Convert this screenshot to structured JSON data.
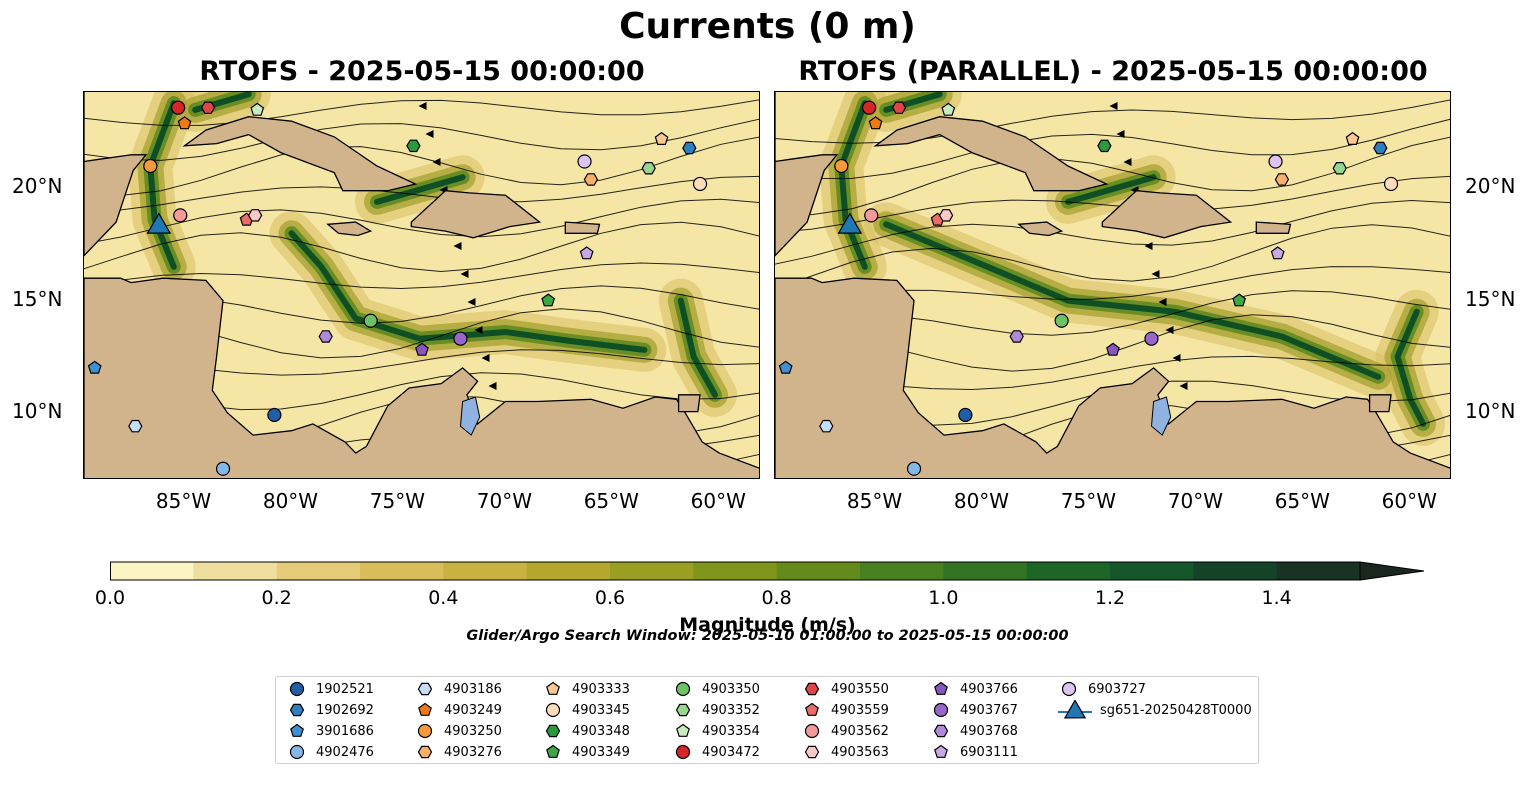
{
  "figure": {
    "suptitle": "Currents (0 m)",
    "panels": [
      {
        "title": "RTOFS - 2025-05-15 00:00:00"
      },
      {
        "title": "RTOFS (PARALLEL) - 2025-05-15 00:00:00"
      }
    ],
    "x_ticks": [
      "85°W",
      "80°W",
      "75°W",
      "70°W",
      "65°W",
      "60°W"
    ],
    "y_ticks": [
      "20°N",
      "15°N",
      "10°N"
    ],
    "colorbar": {
      "label": "Magnitude (m/s)",
      "ticks": [
        "0.0",
        "0.2",
        "0.4",
        "0.6",
        "0.8",
        "1.0",
        "1.2",
        "1.4"
      ],
      "colors": [
        "#fbf4c3",
        "#efdf9f",
        "#e4cc79",
        "#d8bd5a",
        "#c9b241",
        "#b3a72e",
        "#9a9e22",
        "#7f951b",
        "#648a1c",
        "#49801f",
        "#327324",
        "#1e6528",
        "#15562a",
        "#154328",
        "#183224",
        "#1a271e"
      ]
    },
    "search_window": "Glider/Argo Search Window: 2025-05-10 01:00:00 to 2025-05-15 00:00:00",
    "colors": {
      "land": "#d2b48c",
      "lake": "#8fb2e0",
      "ocean_low": "#f5e6a6",
      "ocean_high": "#0f4f24"
    }
  },
  "legend": [
    {
      "label": "1902521",
      "marker": "circle",
      "color": "#1f5fa8"
    },
    {
      "label": "1902692",
      "marker": "hexagon",
      "color": "#2e7fc2"
    },
    {
      "label": "3901686",
      "marker": "pentagon",
      "color": "#3f8fd3"
    },
    {
      "label": "4902476",
      "marker": "circle",
      "color": "#84b8e6"
    },
    {
      "label": "4903186",
      "marker": "hexagon",
      "color": "#c6def5"
    },
    {
      "label": "4903249",
      "marker": "pentagon",
      "color": "#ef7a14"
    },
    {
      "label": "4903250",
      "marker": "circle",
      "color": "#f79a3b"
    },
    {
      "label": "4903276",
      "marker": "hexagon",
      "color": "#f8b06c"
    },
    {
      "label": "4903333",
      "marker": "pentagon",
      "color": "#fbc793"
    },
    {
      "label": "4903345",
      "marker": "circle",
      "color": "#fddcbb"
    },
    {
      "label": "4903348",
      "marker": "hexagon",
      "color": "#2b9a3a"
    },
    {
      "label": "4903349",
      "marker": "pentagon",
      "color": "#3ba845"
    },
    {
      "label": "4903350",
      "marker": "circle",
      "color": "#6cc265"
    },
    {
      "label": "4903352",
      "marker": "hexagon",
      "color": "#98d68f"
    },
    {
      "label": "4903354",
      "marker": "pentagon",
      "color": "#c8ecc0"
    },
    {
      "label": "4903472",
      "marker": "circle",
      "color": "#d62728"
    },
    {
      "label": "4903550",
      "marker": "hexagon",
      "color": "#e04545"
    },
    {
      "label": "4903559",
      "marker": "pentagon",
      "color": "#ec6a6a"
    },
    {
      "label": "4903562",
      "marker": "circle",
      "color": "#f59a9a"
    },
    {
      "label": "4903563",
      "marker": "hexagon",
      "color": "#fbc8c8"
    },
    {
      "label": "4903766",
      "marker": "pentagon",
      "color": "#8a55c0"
    },
    {
      "label": "4903767",
      "marker": "circle",
      "color": "#9966cc"
    },
    {
      "label": "4903768",
      "marker": "hexagon",
      "color": "#b08ad9"
    },
    {
      "label": "6903111",
      "marker": "pentagon",
      "color": "#c9a8e6"
    },
    {
      "label": "6903727",
      "marker": "circle",
      "color": "#ddc4f2"
    },
    {
      "label": "sg651-20250428T0000",
      "marker": "triangle",
      "color": "#1f77b4"
    }
  ],
  "floats_lonlat": [
    {
      "label": "1902521",
      "lon": -80.8,
      "lat": 9.9
    },
    {
      "label": "1902692",
      "lon": -61.4,
      "lat": 21.8
    },
    {
      "label": "3901686",
      "lon": -89.2,
      "lat": 12.0
    },
    {
      "label": "4902476",
      "lon": -83.2,
      "lat": 7.5
    },
    {
      "label": "4903186",
      "lon": -87.3,
      "lat": 9.4
    },
    {
      "label": "4903249",
      "lon": -85.0,
      "lat": 22.9
    },
    {
      "label": "4903250",
      "lon": -86.6,
      "lat": 21.0
    },
    {
      "label": "4903276",
      "lon": -66.0,
      "lat": 20.4
    },
    {
      "label": "4903333",
      "lon": -62.7,
      "lat": 22.2
    },
    {
      "label": "4903345",
      "lon": -60.9,
      "lat": 20.2
    },
    {
      "label": "4903348",
      "lon": -74.3,
      "lat": 21.9
    },
    {
      "label": "4903349",
      "lon": -68.0,
      "lat": 15.0
    },
    {
      "label": "4903350",
      "lon": -76.3,
      "lat": 14.1
    },
    {
      "label": "4903352",
      "lon": -63.3,
      "lat": 20.9
    },
    {
      "label": "4903354",
      "lon": -81.6,
      "lat": 23.5
    },
    {
      "label": "4903472",
      "lon": -85.3,
      "lat": 23.6
    },
    {
      "label": "4903550",
      "lon": -83.9,
      "lat": 23.6
    },
    {
      "label": "4903559",
      "lon": -82.1,
      "lat": 18.6
    },
    {
      "label": "4903562",
      "lon": -85.2,
      "lat": 18.8
    },
    {
      "label": "4903563",
      "lon": -81.7,
      "lat": 18.8
    },
    {
      "label": "4903766",
      "lon": -73.9,
      "lat": 12.8
    },
    {
      "label": "4903767",
      "lon": -72.1,
      "lat": 13.3
    },
    {
      "label": "4903768",
      "lon": -78.4,
      "lat": 13.4
    },
    {
      "label": "6903111",
      "lon": -66.2,
      "lat": 17.1
    },
    {
      "label": "6903727",
      "lon": -66.3,
      "lat": 21.2
    },
    {
      "label": "sg651-20250428T0000",
      "lon": -86.2,
      "lat": 18.3
    }
  ]
}
